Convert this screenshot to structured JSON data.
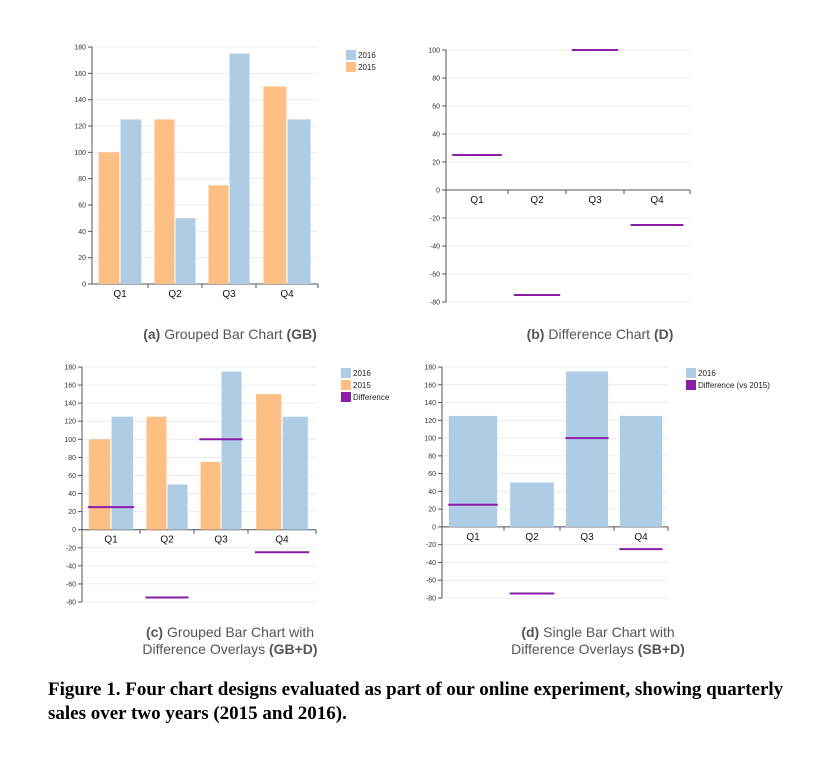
{
  "colors": {
    "2016": "#aecde5",
    "2015": "#fdbf83",
    "difference": "#8a1ea8"
  },
  "panels": [
    {
      "caption_prefix": "(a)",
      "caption_title": "Grouped Bar Chart",
      "caption_suffix": "(GB)"
    },
    {
      "caption_prefix": "(b)",
      "caption_title": "Difference Chart",
      "caption_suffix": "(D)"
    },
    {
      "caption_prefix": "(c)",
      "caption_title": "Grouped Bar Chart with",
      "caption_title2": "Difference Overlays",
      "caption_suffix": "(GB+D)"
    },
    {
      "caption_prefix": "(d)",
      "caption_title": "Single Bar Chart with",
      "caption_title2": "Difference Overlays",
      "caption_suffix": "(SB+D)"
    }
  ],
  "figure_caption": "Figure 1. Four chart designs evaluated as part of our online experiment, showing quarterly sales over two years (2015 and 2016).",
  "chart_data": [
    {
      "type": "bar",
      "categories": [
        "Q1",
        "Q2",
        "Q3",
        "Q4"
      ],
      "series": [
        {
          "name": "2015",
          "values": [
            100,
            125,
            75,
            150
          ]
        },
        {
          "name": "2016",
          "values": [
            125,
            50,
            175,
            125
          ]
        }
      ],
      "legend": [
        "2016",
        "2015"
      ],
      "ylim": [
        0,
        180
      ],
      "yticks": [
        0,
        20,
        40,
        60,
        80,
        100,
        120,
        140,
        160,
        180
      ],
      "legend_position": "top-right"
    },
    {
      "type": "bar",
      "categories": [
        "Q1",
        "Q2",
        "Q3",
        "Q4"
      ],
      "series": [
        {
          "name": "Difference",
          "values": [
            25,
            -75,
            100,
            -25
          ]
        }
      ],
      "ylim": [
        -80,
        100
      ],
      "yticks": [
        -80,
        -60,
        -40,
        -20,
        0,
        20,
        40,
        60,
        80,
        100
      ]
    },
    {
      "type": "bar",
      "categories": [
        "Q1",
        "Q2",
        "Q3",
        "Q4"
      ],
      "series": [
        {
          "name": "2015",
          "values": [
            100,
            125,
            75,
            150
          ]
        },
        {
          "name": "2016",
          "values": [
            125,
            50,
            175,
            125
          ]
        },
        {
          "name": "Difference",
          "values": [
            25,
            -75,
            100,
            -25
          ]
        }
      ],
      "legend": [
        "2016",
        "2015",
        "Difference"
      ],
      "ylim": [
        -80,
        180
      ],
      "yticks": [
        -80,
        -60,
        -40,
        -20,
        0,
        20,
        40,
        60,
        80,
        100,
        120,
        140,
        160,
        180
      ],
      "legend_position": "top-right"
    },
    {
      "type": "bar",
      "categories": [
        "Q1",
        "Q2",
        "Q3",
        "Q4"
      ],
      "series": [
        {
          "name": "2016",
          "values": [
            125,
            50,
            175,
            125
          ]
        },
        {
          "name": "Difference (vs 2015)",
          "values": [
            25,
            -75,
            100,
            -25
          ]
        }
      ],
      "legend": [
        "2016",
        "Difference (vs 2015)"
      ],
      "ylim": [
        -80,
        180
      ],
      "yticks": [
        -80,
        -60,
        -40,
        -20,
        0,
        20,
        40,
        60,
        80,
        100,
        120,
        140,
        160,
        180
      ],
      "legend_position": "top-right"
    }
  ]
}
